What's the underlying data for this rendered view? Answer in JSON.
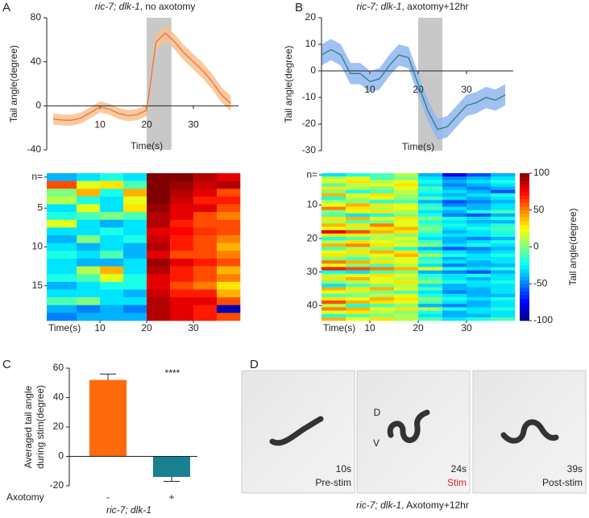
{
  "chart_data": [
    {
      "type": "line",
      "panel": "A",
      "title_italic": "ric-7; dlk-1",
      "title_rest": ", no axotomy",
      "xlabel": "Time(s)",
      "ylabel": "Tail angle(degree)",
      "xlim": [
        -1.4,
        40
      ],
      "xticks": [
        10,
        20,
        30
      ],
      "ylim": [
        -40,
        80
      ],
      "yticks": [
        80,
        40,
        0,
        -40
      ],
      "stim": [
        20,
        25.3
      ],
      "color": "#e8733a",
      "band_color": "#f9bf8c",
      "x": [
        0,
        2,
        4,
        6,
        8,
        10,
        12,
        14,
        16,
        18,
        20,
        22,
        24,
        26,
        28,
        30,
        32,
        34,
        36,
        38
      ],
      "values": [
        -12,
        -13,
        -13,
        -11,
        -6,
        -1,
        -3,
        -7,
        -9,
        -8,
        -4,
        58,
        66,
        58,
        48,
        40,
        32,
        22,
        10,
        2
      ],
      "errors": [
        5,
        5,
        5,
        5,
        5,
        5,
        5,
        5,
        5,
        5,
        5,
        7,
        7,
        7,
        7,
        7,
        7,
        7,
        7,
        7
      ]
    },
    {
      "type": "line",
      "panel": "B",
      "title_italic": "ric-7; dlk-1",
      "title_rest": ", axotomy+12hr",
      "xlabel": "Time(s)",
      "ylabel": "Tail angle(degree)",
      "xlim": [
        0,
        40
      ],
      "xticks": [
        10,
        20,
        30
      ],
      "ylim": [
        -30,
        20
      ],
      "yticks": [
        20,
        10,
        0,
        -10,
        -20,
        -30
      ],
      "stim": [
        20,
        25
      ],
      "color": "#2a7f80",
      "band_color": "#8fb6ee",
      "x": [
        0,
        2,
        4,
        6,
        8,
        10,
        12,
        14,
        16,
        18,
        20,
        22,
        24,
        26,
        28,
        30,
        32,
        34,
        36,
        38
      ],
      "values": [
        6,
        8,
        6,
        -1,
        -1,
        -4,
        -3,
        2,
        6,
        5,
        -5,
        -15,
        -22,
        -21,
        -17,
        -13,
        -12,
        -10,
        -11,
        -9
      ],
      "errors": [
        4,
        4,
        4,
        4,
        4,
        4,
        4,
        4,
        4,
        4,
        4,
        4,
        4,
        4,
        4,
        4,
        4,
        4,
        4,
        4
      ]
    },
    {
      "type": "heatmap",
      "xlabel": "Time(s)",
      "xlim": [
        -1.4,
        40
      ],
      "xticks": [
        10,
        20,
        30
      ],
      "xbins": [
        -1.4,
        5,
        10,
        15,
        20,
        25,
        30,
        35,
        40
      ],
      "rows": 19,
      "yticks": [
        {
          "value": 1,
          "label": "n="
        },
        5,
        10,
        15
      ],
      "clim": [
        -100,
        100
      ],
      "values": [
        [
          -40,
          -30,
          -20,
          -30,
          100,
          100,
          90,
          80
        ],
        [
          60,
          20,
          30,
          -10,
          100,
          95,
          85,
          90
        ],
        [
          0,
          40,
          -20,
          40,
          100,
          90,
          80,
          60
        ],
        [
          10,
          -20,
          -30,
          20,
          100,
          85,
          70,
          70
        ],
        [
          -30,
          20,
          -30,
          30,
          95,
          80,
          80,
          60
        ],
        [
          -20,
          -10,
          0,
          -10,
          90,
          80,
          60,
          50
        ],
        [
          20,
          -30,
          -40,
          -30,
          90,
          70,
          60,
          60
        ],
        [
          -30,
          -30,
          -20,
          -30,
          80,
          75,
          65,
          60
        ],
        [
          -40,
          0,
          -30,
          -20,
          85,
          70,
          60,
          50
        ],
        [
          -30,
          -40,
          -30,
          -40,
          90,
          70,
          60,
          40
        ],
        [
          -20,
          -30,
          -10,
          -40,
          80,
          60,
          60,
          50
        ],
        [
          -30,
          -40,
          -40,
          -30,
          95,
          80,
          70,
          60
        ],
        [
          -30,
          10,
          40,
          -30,
          90,
          70,
          60,
          40
        ],
        [
          -20,
          -10,
          20,
          -20,
          80,
          70,
          60,
          50
        ],
        [
          -40,
          -30,
          -20,
          -20,
          80,
          60,
          50,
          30
        ],
        [
          -30,
          -30,
          -30,
          -40,
          85,
          70,
          70,
          40
        ],
        [
          -10,
          0,
          -30,
          -30,
          90,
          80,
          80,
          60
        ],
        [
          -40,
          -50,
          -40,
          -50,
          90,
          80,
          70,
          -90
        ],
        [
          -50,
          -40,
          -40,
          -40,
          90,
          80,
          70,
          60
        ]
      ]
    },
    {
      "type": "heatmap",
      "xlabel": "Time(s)",
      "xlim": [
        0,
        40
      ],
      "xticks": [
        10,
        20,
        30
      ],
      "xbins": [
        0,
        5,
        10,
        15,
        20,
        25,
        30,
        35,
        40
      ],
      "rows": 44,
      "yticks": [
        {
          "value": 1,
          "label": "n="
        },
        10,
        20,
        30,
        40
      ],
      "clim": [
        -100,
        100
      ],
      "colorbar": {
        "ticks": [
          100,
          50,
          0,
          -50,
          -100
        ],
        "label": "Tail angle(degree)"
      },
      "values": [
        [
          -30,
          -20,
          -10,
          10,
          -40,
          -80,
          -60,
          -40
        ],
        [
          10,
          20,
          -10,
          0,
          -30,
          -50,
          -40,
          -30
        ],
        [
          20,
          30,
          10,
          20,
          -20,
          -40,
          -30,
          -20
        ],
        [
          -10,
          10,
          20,
          30,
          -30,
          -50,
          -40,
          -30
        ],
        [
          30,
          10,
          0,
          20,
          -10,
          -40,
          -50,
          -40
        ],
        [
          0,
          -20,
          -10,
          10,
          -20,
          -30,
          -40,
          -60
        ],
        [
          40,
          20,
          30,
          10,
          -30,
          -40,
          -30,
          -20
        ],
        [
          -20,
          10,
          20,
          0,
          -10,
          -30,
          -40,
          -30
        ],
        [
          10,
          0,
          -20,
          -10,
          -40,
          -60,
          -50,
          -40
        ],
        [
          20,
          40,
          30,
          20,
          -20,
          -50,
          -40,
          -30
        ],
        [
          50,
          30,
          10,
          20,
          -10,
          -30,
          -40,
          -30
        ],
        [
          0,
          20,
          30,
          10,
          -30,
          -40,
          -20,
          -10
        ],
        [
          -10,
          -30,
          -20,
          0,
          -20,
          -50,
          -60,
          -40
        ],
        [
          30,
          40,
          20,
          30,
          0,
          -20,
          -30,
          -20
        ],
        [
          10,
          -10,
          0,
          20,
          -20,
          -30,
          -40,
          -40
        ],
        [
          40,
          30,
          50,
          20,
          -10,
          -20,
          -30,
          -20
        ],
        [
          20,
          10,
          30,
          40,
          0,
          -30,
          -20,
          -10
        ],
        [
          80,
          60,
          40,
          30,
          -10,
          -40,
          -30,
          -20
        ],
        [
          30,
          20,
          10,
          0,
          -20,
          -30,
          -30,
          -20
        ],
        [
          -20,
          -10,
          10,
          20,
          -30,
          -40,
          -50,
          -40
        ],
        [
          10,
          30,
          20,
          10,
          -10,
          -40,
          -30,
          -20
        ],
        [
          40,
          50,
          30,
          20,
          0,
          -30,
          -20,
          -30
        ],
        [
          -10,
          10,
          0,
          -20,
          -40,
          -60,
          -50,
          -40
        ],
        [
          20,
          30,
          40,
          30,
          -20,
          -30,
          -40,
          -30
        ],
        [
          30,
          10,
          20,
          40,
          10,
          -20,
          -30,
          -20
        ],
        [
          0,
          -10,
          10,
          20,
          -20,
          -40,
          -30,
          -30
        ],
        [
          50,
          40,
          30,
          20,
          -10,
          -30,
          -40,
          -30
        ],
        [
          20,
          0,
          -10,
          10,
          -30,
          -50,
          -40,
          -40
        ],
        [
          70,
          60,
          50,
          40,
          20,
          -20,
          -30,
          -20
        ],
        [
          -20,
          -30,
          -10,
          0,
          -40,
          -50,
          -60,
          -40
        ],
        [
          10,
          20,
          30,
          20,
          -20,
          -30,
          -20,
          -30
        ],
        [
          30,
          40,
          20,
          10,
          -10,
          -30,
          -40,
          -30
        ],
        [
          0,
          10,
          20,
          30,
          0,
          -20,
          -30,
          -20
        ],
        [
          -30,
          -10,
          0,
          10,
          -30,
          -40,
          -30,
          -30
        ],
        [
          40,
          30,
          40,
          20,
          -10,
          -40,
          -40,
          -30
        ],
        [
          20,
          10,
          0,
          -10,
          -30,
          -50,
          -40,
          -30
        ],
        [
          -10,
          0,
          10,
          20,
          -20,
          -30,
          -40,
          -40
        ],
        [
          30,
          20,
          40,
          30,
          0,
          -20,
          -30,
          -20
        ],
        [
          60,
          40,
          30,
          20,
          -10,
          -30,
          -40,
          -30
        ],
        [
          10,
          -20,
          -10,
          0,
          -40,
          -50,
          -40,
          -30
        ],
        [
          50,
          40,
          20,
          30,
          10,
          -20,
          -30,
          -20
        ],
        [
          20,
          30,
          10,
          0,
          -20,
          -40,
          -30,
          -30
        ],
        [
          -20,
          -10,
          0,
          10,
          -30,
          -40,
          -40,
          -30
        ],
        [
          40,
          20,
          30,
          10,
          -10,
          -30,
          -20,
          -10
        ]
      ]
    },
    {
      "type": "bar",
      "panel": "C",
      "ylabel": [
        "Averaged tail angle",
        "during stim(degree)"
      ],
      "xlabel": "Axotomy",
      "group_label": "ric-7; dlk-1",
      "annotation": "****",
      "categories": [
        "-",
        "+"
      ],
      "values": [
        52,
        -14
      ],
      "errors": [
        4,
        3
      ],
      "colors": [
        "#ff6a0d",
        "#19808f"
      ],
      "ylim": [
        -20,
        60
      ],
      "yticks": [
        60,
        40,
        20,
        0,
        -20
      ]
    }
  ],
  "panel_d": {
    "label": "D",
    "caption_italic": "ric-7; dlk-1",
    "caption_rest": ", Axotomy+12hr",
    "frames": [
      {
        "time": "10s",
        "phase": "Pre-stim"
      },
      {
        "time": "24s",
        "phase": "Stim"
      },
      {
        "time": "39s",
        "phase": "Post-stim"
      }
    ],
    "dorsal": "D",
    "ventral": "V"
  }
}
